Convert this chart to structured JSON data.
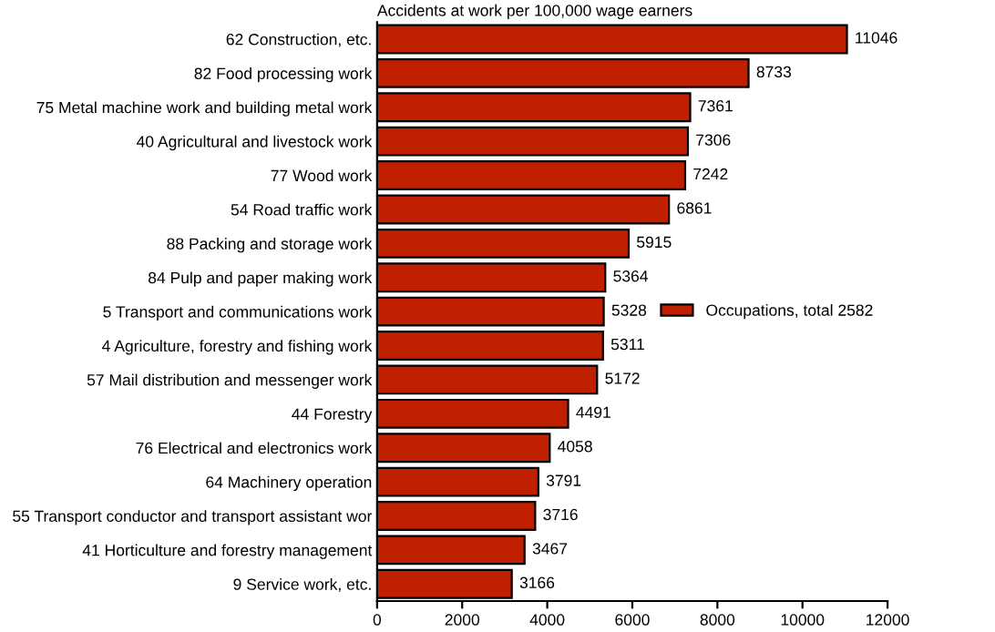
{
  "chart_data": {
    "type": "bar",
    "orientation": "horizontal",
    "title": "Accidents at work per 100,000 wage earners",
    "categories": [
      "62 Construction, etc.",
      "82 Food processing work",
      "75 Metal machine work and building metal work",
      "40 Agricultural and livestock work",
      "77 Wood work",
      "54 Road traffic work",
      "88 Packing and storage work",
      "84 Pulp and paper making work",
      "5 Transport and communications work",
      "4 Agriculture, forestry and fishing work",
      "57 Mail distribution and messenger work",
      "44 Forestry",
      "76 Electrical and electronics work",
      "64 Machinery operation",
      "55 Transport conductor and transport assistant wor",
      "41 Horticulture and forestry management",
      "9 Service work, etc."
    ],
    "series": [
      {
        "name": "Occupations, total 2582",
        "color": "#c02000",
        "values": [
          11046,
          8733,
          7361,
          7306,
          7242,
          6861,
          5915,
          5364,
          5328,
          5311,
          5172,
          4491,
          4058,
          3791,
          3716,
          3467,
          3166
        ]
      }
    ],
    "xlim": [
      0,
      12000
    ],
    "xticks": [
      0,
      2000,
      4000,
      6000,
      8000,
      10000,
      12000
    ],
    "data_labels": true,
    "grid": false,
    "legend": "right"
  }
}
